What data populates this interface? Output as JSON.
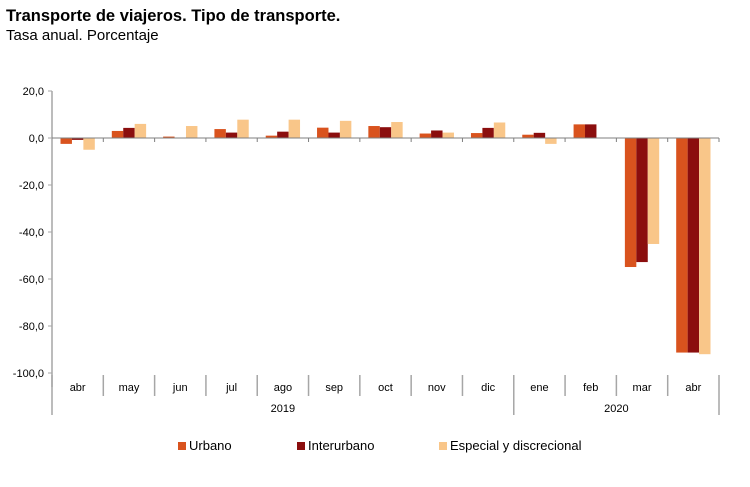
{
  "chart_data": {
    "type": "bar",
    "title": "Transporte de viajeros. Tipo de transporte.",
    "subtitle": "Tasa anual. Porcentaje",
    "xlabel": "",
    "ylabel": "",
    "ylim": [
      -100,
      20
    ],
    "yticks": [
      20,
      0,
      -20,
      -40,
      -60,
      -80,
      -100
    ],
    "ytick_labels": [
      "20,0",
      "0,0",
      "-20,0",
      "-40,0",
      "-60,0",
      "-80,0",
      "-100,0"
    ],
    "grid": false,
    "legend_position": "bottom",
    "categories": [
      "abr",
      "may",
      "jun",
      "jul",
      "ago",
      "sep",
      "oct",
      "nov",
      "dic",
      "ene",
      "feb",
      "mar",
      "abr"
    ],
    "groups": [
      {
        "label": "2019",
        "span": 9
      },
      {
        "label": "2020",
        "span": 4
      }
    ],
    "series": [
      {
        "name": "Urbano",
        "color": "#D9531E",
        "values": [
          -2.5,
          3.0,
          0.6,
          3.8,
          1.0,
          4.4,
          5.1,
          1.9,
          2.1,
          1.4,
          5.8,
          -54.9,
          -91.3
        ]
      },
      {
        "name": "Interurbano",
        "color": "#8B0E0E",
        "values": [
          -0.8,
          4.3,
          0.1,
          2.3,
          2.7,
          2.3,
          4.6,
          3.2,
          4.3,
          2.2,
          5.8,
          -52.8,
          -91.3
        ]
      },
      {
        "name": "Especial y discrecional",
        "color": "#F9C689",
        "values": [
          -5.0,
          6.0,
          5.1,
          7.8,
          7.8,
          7.3,
          6.8,
          2.3,
          6.6,
          -2.5,
          0.0,
          -45.1,
          -92.0
        ]
      }
    ]
  }
}
